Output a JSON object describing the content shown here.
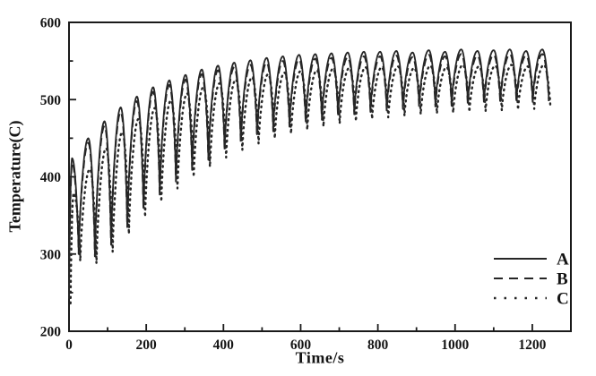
{
  "figure": {
    "background": "#ffffff",
    "line_color": "#262626",
    "frame_color": "#1a1a1a"
  },
  "chart_data": {
    "type": "line",
    "title": "",
    "xlabel": "Time/s",
    "ylabel": "Temperature(C)",
    "xlim": [
      0,
      1300
    ],
    "ylim": [
      200,
      600
    ],
    "x_major_ticks": [
      0,
      200,
      400,
      600,
      800,
      1000,
      1200
    ],
    "x_minor_step": 100,
    "y_major_ticks": [
      200,
      300,
      400,
      500,
      600
    ],
    "y_minor_step": 50,
    "grid": false,
    "legend": {
      "position": "lower right",
      "entries": [
        {
          "label": "A",
          "style": "solid"
        },
        {
          "label": "B",
          "style": "dashed"
        },
        {
          "label": "C",
          "style": "dotted"
        }
      ]
    },
    "cycles": {
      "description": "Periodic heating/cooling cycles; each cycle has a peak then a valley",
      "period_s": 42,
      "peak_times": [
        8,
        50,
        92,
        134,
        176,
        218,
        260,
        302,
        344,
        386,
        428,
        470,
        512,
        554,
        596,
        638,
        680,
        722,
        764,
        806,
        848,
        890,
        932,
        974,
        1016,
        1058,
        1100,
        1142,
        1184,
        1226
      ],
      "valley_times": [
        25,
        67,
        109,
        151,
        193,
        235,
        277,
        319,
        361,
        403,
        445,
        487,
        529,
        571,
        613,
        655,
        697,
        739,
        781,
        823,
        865,
        907,
        949,
        991,
        1033,
        1075,
        1117,
        1159,
        1201,
        1243
      ]
    },
    "series": [
      {
        "name": "A",
        "style": "solid",
        "start": {
          "t": 0,
          "T": 245
        },
        "t_shift": 0,
        "peaks": [
          424,
          450,
          472,
          490,
          504,
          516,
          525,
          532,
          539,
          544,
          548,
          551,
          554,
          556,
          558,
          559,
          560,
          561,
          562,
          562,
          563,
          561,
          564,
          562,
          565,
          563,
          564,
          565,
          563,
          565
        ],
        "valleys": [
          303,
          300,
          315,
          338,
          360,
          380,
          397,
          412,
          425,
          437,
          447,
          455,
          462,
          468,
          473,
          477,
          481,
          484,
          487,
          489,
          491,
          493,
          494,
          495,
          496,
          497,
          498,
          499,
          500,
          501
        ]
      },
      {
        "name": "B",
        "style": "dashed",
        "start": {
          "t": 0,
          "T": 242
        },
        "t_shift": 0,
        "peaks": [
          418,
          444,
          466,
          484,
          498,
          510,
          519,
          526,
          533,
          538,
          542,
          545,
          548,
          550,
          552,
          553,
          554,
          555,
          556,
          556,
          557,
          555,
          558,
          556,
          559,
          557,
          558,
          559,
          557,
          559
        ],
        "valleys": [
          300,
          297,
          312,
          335,
          357,
          377,
          394,
          409,
          422,
          434,
          444,
          452,
          459,
          465,
          470,
          474,
          478,
          481,
          484,
          486,
          488,
          490,
          491,
          492,
          493,
          494,
          495,
          496,
          497,
          498
        ]
      },
      {
        "name": "C",
        "style": "dotted",
        "start": {
          "t": 0,
          "T": 236
        },
        "t_shift": 4,
        "peaks": [
          379,
          410,
          437,
          458,
          475,
          489,
          499,
          508,
          516,
          521,
          526,
          529,
          533,
          535,
          537,
          538,
          540,
          541,
          542,
          542,
          543,
          541,
          544,
          542,
          545,
          543,
          544,
          545,
          543,
          545
        ],
        "valleys": [
          291,
          288,
          303,
          326,
          348,
          368,
          385,
          400,
          413,
          425,
          435,
          443,
          450,
          456,
          461,
          465,
          469,
          472,
          475,
          477,
          479,
          481,
          482,
          483,
          484,
          485,
          486,
          487,
          488,
          489
        ]
      }
    ]
  }
}
